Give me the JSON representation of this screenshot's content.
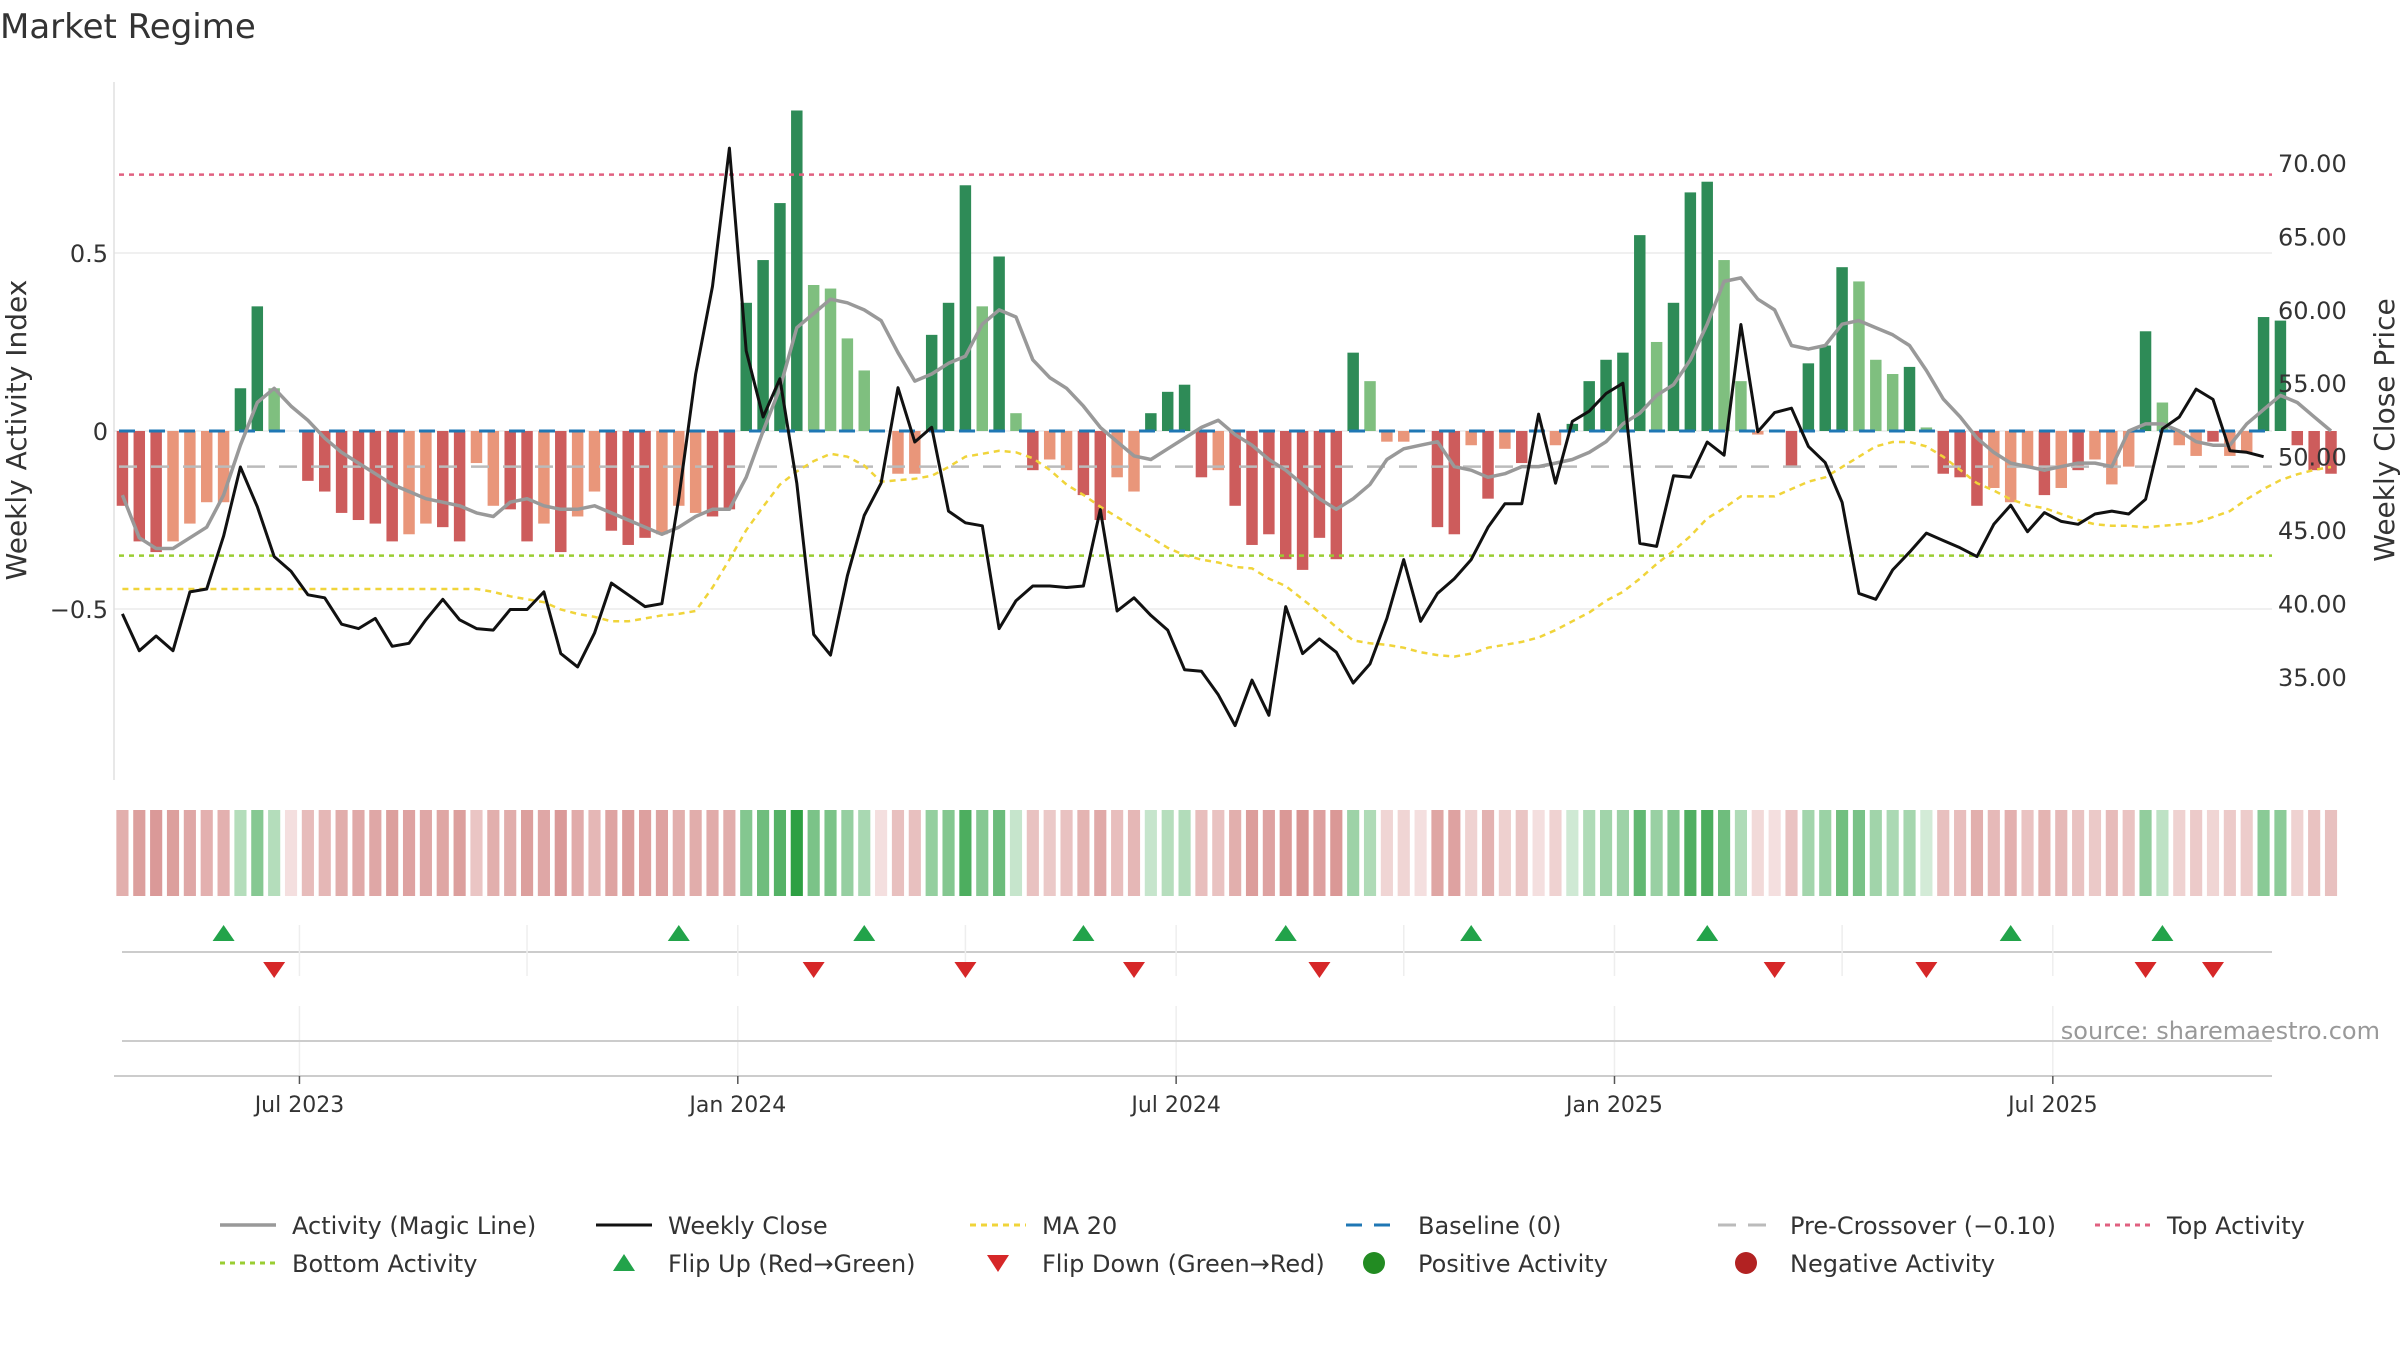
{
  "chart_data": {
    "type": "bar",
    "title": "Market Regime",
    "ylabel_left": "Weekly Activity Index",
    "ylabel_right": "Weekly Close Price",
    "source": "source: sharemaestro.com",
    "left_axis": {
      "range": [
        -0.98,
        0.98
      ],
      "ticks": [
        {
          "v": 0.5,
          "label": "0.5"
        },
        {
          "v": 0,
          "label": "0"
        },
        {
          "v": -0.5,
          "label": "−0.5"
        }
      ]
    },
    "right_axis": {
      "range": [
        28,
        75.5
      ],
      "ticks": [
        {
          "v": 70,
          "label": "70.00"
        },
        {
          "v": 65,
          "label": "65.00"
        },
        {
          "v": 60,
          "label": "60.00"
        },
        {
          "v": 55,
          "label": "55.00"
        },
        {
          "v": 50,
          "label": "50.00"
        },
        {
          "v": 45,
          "label": "45.00"
        },
        {
          "v": 40,
          "label": "40.00"
        },
        {
          "v": 35,
          "label": "35.00"
        }
      ]
    },
    "x_ticks": [
      {
        "week": 11,
        "label": "Jul 2023"
      },
      {
        "week": 37,
        "label": "Jan 2024"
      },
      {
        "week": 63,
        "label": "Jul 2024"
      },
      {
        "week": 89,
        "label": "Jan 2025"
      },
      {
        "week": 115,
        "label": "Jul 2025"
      }
    ],
    "weeks": 128,
    "activity": [
      -0.21,
      -0.31,
      -0.34,
      -0.31,
      -0.26,
      -0.2,
      -0.2,
      0.12,
      0.35,
      0.12,
      0.0,
      -0.14,
      -0.17,
      -0.23,
      -0.25,
      -0.26,
      -0.31,
      -0.29,
      -0.26,
      -0.27,
      -0.31,
      -0.09,
      -0.21,
      -0.22,
      -0.31,
      -0.26,
      -0.34,
      -0.24,
      -0.17,
      -0.28,
      -0.32,
      -0.3,
      -0.29,
      -0.21,
      -0.23,
      -0.24,
      -0.22,
      0.36,
      0.48,
      0.64,
      0.9,
      0.41,
      0.4,
      0.26,
      0.17,
      0.0,
      -0.12,
      -0.12,
      0.27,
      0.36,
      0.69,
      0.35,
      0.49,
      0.05,
      -0.11,
      -0.08,
      -0.11,
      -0.18,
      -0.25,
      -0.13,
      -0.17,
      0.05,
      0.11,
      0.13,
      -0.13,
      -0.11,
      -0.21,
      -0.32,
      -0.29,
      -0.36,
      -0.39,
      -0.3,
      -0.36,
      0.22,
      0.14,
      -0.03,
      -0.03,
      0.0,
      -0.27,
      -0.29,
      -0.04,
      -0.19,
      -0.05,
      -0.09,
      0.0,
      -0.04,
      0.02,
      0.14,
      0.2,
      0.22,
      0.55,
      0.25,
      0.36,
      0.67,
      0.7,
      0.48,
      0.14,
      -0.01,
      0.0,
      -0.1,
      0.19,
      0.24,
      0.46,
      0.42,
      0.2,
      0.16,
      0.18,
      0.01,
      -0.12,
      -0.13,
      -0.21,
      -0.16,
      -0.2,
      -0.1,
      -0.18,
      -0.16,
      -0.11,
      -0.08,
      -0.15,
      -0.1,
      0.28,
      0.08,
      -0.04,
      -0.07,
      -0.03,
      -0.07,
      -0.06,
      0.32,
      0.31,
      -0.04,
      -0.11,
      -0.12
    ],
    "activity_styles": [
      "nd",
      "nd",
      "nd",
      "nl",
      "nl",
      "nl",
      "nl",
      "pd",
      "pd",
      "pl",
      "pl",
      "nd",
      "nd",
      "nd",
      "nd",
      "nd",
      "nd",
      "nl",
      "nl",
      "nd",
      "nd",
      "nl",
      "nl",
      "nd",
      "nd",
      "nl",
      "nd",
      "nl",
      "nl",
      "nd",
      "nd",
      "nd",
      "nl",
      "nl",
      "nl",
      "nd",
      "nd",
      "pd",
      "pd",
      "pd",
      "pd",
      "pl",
      "pl",
      "pl",
      "pl",
      "nl",
      "nl",
      "nl",
      "pd",
      "pd",
      "pd",
      "pl",
      "pd",
      "pl",
      "nd",
      "nl",
      "nl",
      "nd",
      "nd",
      "nl",
      "nl",
      "pd",
      "pd",
      "pd",
      "nd",
      "nl",
      "nd",
      "nd",
      "nd",
      "nd",
      "nd",
      "nd",
      "nd",
      "pd",
      "pl",
      "nl",
      "nl",
      "nl",
      "nd",
      "nd",
      "nl",
      "nd",
      "nl",
      "nd",
      "nl",
      "nl",
      "pd",
      "pd",
      "pd",
      "pd",
      "pd",
      "pl",
      "pd",
      "pd",
      "pd",
      "pl",
      "pl",
      "nl",
      "pl",
      "nd",
      "pd",
      "pd",
      "pd",
      "pl",
      "pl",
      "pl",
      "pd",
      "pl",
      "nd",
      "nd",
      "nd",
      "nl",
      "nl",
      "nl",
      "nd",
      "nl",
      "nd",
      "nl",
      "nl",
      "nl",
      "pd",
      "pl",
      "nl",
      "nl",
      "nd",
      "nl",
      "nl",
      "pd",
      "pd",
      "nd",
      "nd",
      "nd"
    ],
    "magic_line": [
      -0.18,
      -0.3,
      -0.33,
      -0.33,
      -0.3,
      -0.27,
      -0.18,
      -0.04,
      0.08,
      0.12,
      0.07,
      0.03,
      -0.02,
      -0.06,
      -0.09,
      -0.12,
      -0.15,
      -0.17,
      -0.19,
      -0.2,
      -0.21,
      -0.23,
      -0.24,
      -0.2,
      -0.19,
      -0.21,
      -0.22,
      -0.22,
      -0.21,
      -0.23,
      -0.25,
      -0.27,
      -0.29,
      -0.27,
      -0.24,
      -0.22,
      -0.22,
      -0.13,
      0.0,
      0.12,
      0.29,
      0.33,
      0.37,
      0.36,
      0.34,
      0.31,
      0.22,
      0.14,
      0.16,
      0.19,
      0.21,
      0.3,
      0.34,
      0.32,
      0.2,
      0.15,
      0.12,
      0.07,
      0.01,
      -0.03,
      -0.07,
      -0.08,
      -0.05,
      -0.02,
      0.01,
      0.03,
      -0.01,
      -0.04,
      -0.08,
      -0.11,
      -0.15,
      -0.19,
      -0.22,
      -0.19,
      -0.15,
      -0.08,
      -0.05,
      -0.04,
      -0.03,
      -0.1,
      -0.11,
      -0.13,
      -0.12,
      -0.1,
      -0.1,
      -0.09,
      -0.08,
      -0.06,
      -0.03,
      0.02,
      0.05,
      0.1,
      0.13,
      0.2,
      0.3,
      0.42,
      0.43,
      0.37,
      0.34,
      0.24,
      0.23,
      0.24,
      0.3,
      0.31,
      0.29,
      0.27,
      0.24,
      0.17,
      0.09,
      0.04,
      -0.02,
      -0.06,
      -0.09,
      -0.1,
      -0.11,
      -0.1,
      -0.09,
      -0.09,
      -0.1,
      0.0,
      0.02,
      0.02,
      0.0,
      -0.03,
      -0.04,
      -0.04,
      0.02,
      0.06,
      0.1,
      0.08,
      0.04,
      0.0
    ],
    "weekly_close": [
      39.3,
      36.8,
      37.8,
      36.8,
      40.8,
      41.0,
      44.6,
      49.3,
      46.6,
      43.2,
      42.2,
      40.6,
      40.4,
      38.6,
      38.3,
      39.0,
      37.1,
      37.3,
      38.9,
      40.3,
      38.9,
      38.3,
      38.2,
      39.6,
      39.6,
      40.8,
      36.6,
      35.7,
      38.0,
      41.4,
      40.6,
      39.8,
      40.0,
      47.2,
      55.6,
      61.6,
      71.0,
      57.2,
      52.7,
      55.3,
      48.2,
      37.9,
      36.5,
      41.9,
      46.0,
      48.2,
      54.7,
      51.0,
      52.0,
      46.3,
      45.5,
      45.3,
      38.3,
      40.2,
      41.2,
      41.2,
      41.1,
      41.2,
      46.4,
      39.5,
      40.4,
      39.2,
      38.2,
      35.5,
      35.4,
      33.8,
      31.7,
      34.8,
      32.4,
      39.8,
      36.6,
      37.6,
      36.7,
      34.6,
      35.9,
      39.0,
      43.0,
      38.8,
      40.7,
      41.7,
      43.0,
      45.2,
      46.8,
      46.8,
      52.9,
      48.2,
      52.4,
      53.1,
      54.3,
      55.0,
      44.1,
      43.9,
      48.7,
      48.6,
      51.0,
      50.1,
      59.0,
      51.7,
      53.0,
      53.3,
      50.7,
      49.6,
      46.9,
      40.7,
      40.3,
      42.3,
      43.5,
      44.8,
      44.3,
      43.8,
      43.2,
      45.4,
      46.7,
      44.9,
      46.2,
      45.6,
      45.4,
      46.1,
      46.3,
      46.1,
      47.1,
      51.9,
      52.7,
      54.6,
      53.9,
      50.4,
      50.3,
      50.0
    ],
    "ma20": [
      41.0,
      41.0,
      41.0,
      41.0,
      41.0,
      41.0,
      41.0,
      41.0,
      41.0,
      41.0,
      41.0,
      41.0,
      41.0,
      41.0,
      41.0,
      41.0,
      41.0,
      41.0,
      41.0,
      41.0,
      41.0,
      41.0,
      40.8,
      40.5,
      40.3,
      40.1,
      39.6,
      39.3,
      39.1,
      38.8,
      38.8,
      39.0,
      39.2,
      39.3,
      39.5,
      41.1,
      43.0,
      45.0,
      46.6,
      48.1,
      49.0,
      49.7,
      50.2,
      50.0,
      49.4,
      48.3,
      48.4,
      48.5,
      48.7,
      49.3,
      50.0,
      50.2,
      50.4,
      50.3,
      49.9,
      49.1,
      48.1,
      47.4,
      46.6,
      45.9,
      45.2,
      44.5,
      43.8,
      43.3,
      43.0,
      42.8,
      42.5,
      42.4,
      41.7,
      41.2,
      40.3,
      39.4,
      38.4,
      37.5,
      37.3,
      37.2,
      37.0,
      36.7,
      36.5,
      36.4,
      36.6,
      37.0,
      37.2,
      37.4,
      37.7,
      38.2,
      38.8,
      39.4,
      40.2,
      40.8,
      41.7,
      42.7,
      43.6,
      44.6,
      45.8,
      46.5,
      47.3,
      47.3,
      47.3,
      47.8,
      48.3,
      48.6,
      49.3,
      50.0,
      50.7,
      51.0,
      51.0,
      50.7,
      50.0,
      49.1,
      48.2,
      47.7,
      47.1,
      46.7,
      46.5,
      46.1,
      45.7,
      45.4,
      45.3,
      45.3,
      45.2,
      45.3,
      45.4,
      45.5,
      45.9,
      46.3,
      47.1,
      47.8,
      48.4,
      48.8,
      49.1,
      49.3
    ],
    "baseline": 0,
    "pre_crossover": -0.1,
    "top_activity": 0.72,
    "bottom_activity": -0.35,
    "flip_up_weeks": [
      6,
      33,
      44,
      57,
      69,
      80,
      94,
      112,
      121
    ],
    "flip_down_weeks": [
      9,
      41,
      50,
      60,
      71,
      98,
      107,
      120,
      124
    ],
    "legend": [
      [
        "Activity (Magic Line)",
        "Weekly Close",
        "MA 20",
        "Baseline (0)",
        "Pre-Crossover (−0.10)",
        "Top Activity"
      ],
      [
        "Bottom Activity",
        "Flip Up (Red→Green)",
        "Flip Down (Green→Red)",
        "Positive Activity",
        "Negative Activity"
      ]
    ],
    "colors": {
      "pos_dark": "#2e8b57",
      "pos_light": "#7fbf7f",
      "neg_dark": "#cd5c5c",
      "neg_light": "#e9967a",
      "magic": "#999999",
      "close": "#111111",
      "ma20": "#f0d43a",
      "baseline": "#1f77b4",
      "precross": "#bbbbbb",
      "top": "#e06080",
      "bottom": "#9acd32",
      "flip_up": "#22a34a",
      "flip_down": "#d62728",
      "pos_dot": "#228b22",
      "neg_dot": "#b22222"
    }
  }
}
